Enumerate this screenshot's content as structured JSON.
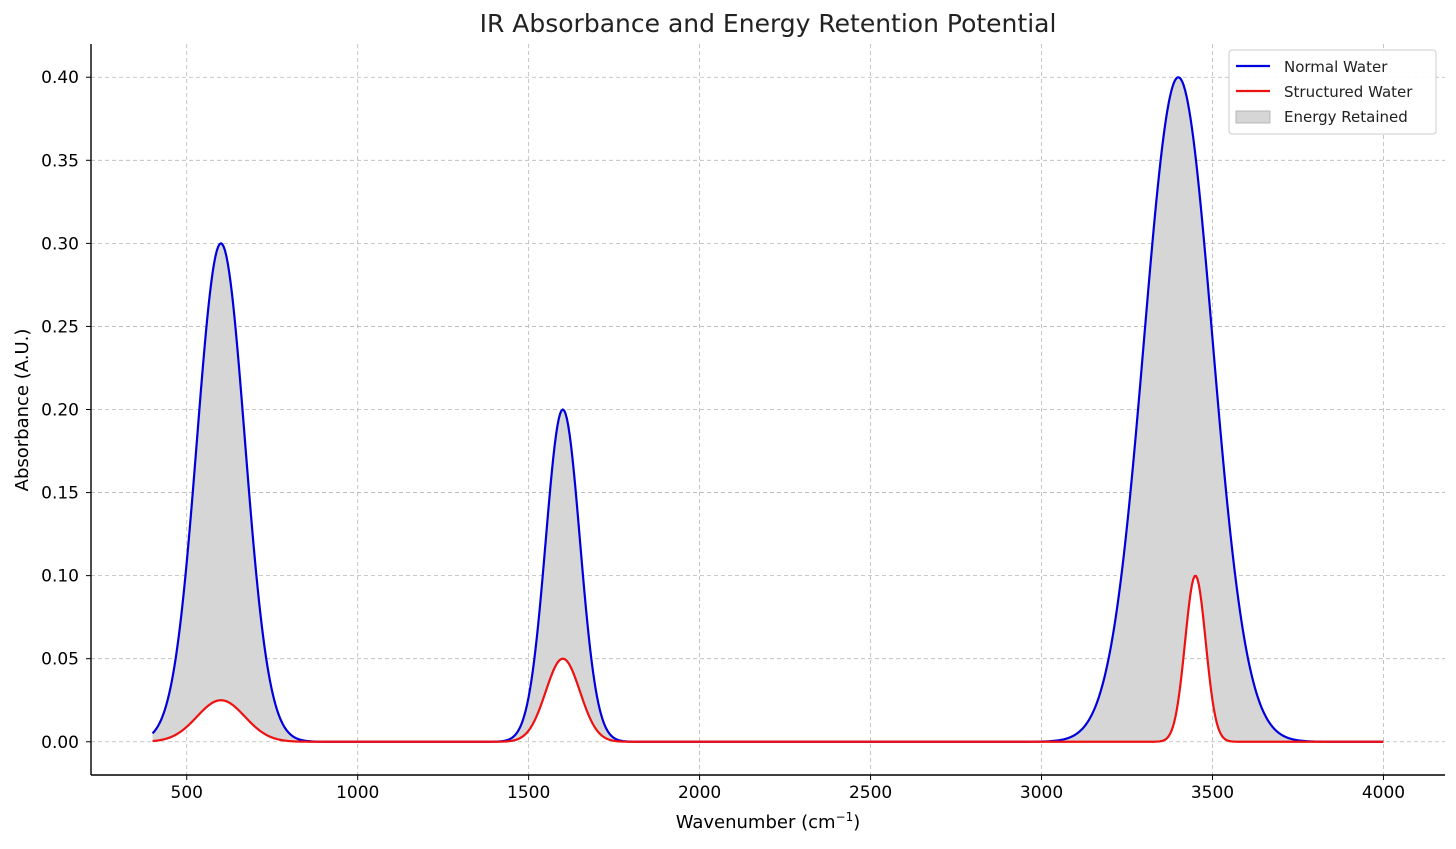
{
  "chart_data": {
    "type": "line",
    "title": "IR Absorbance and Energy Retention Potential",
    "xlabel": {
      "main": "Wavenumber (cm",
      "superscript": "−1",
      "end": ")"
    },
    "ylabel": "Absorbance (A.U.)",
    "xlim": [
      220,
      4180
    ],
    "ylim": [
      -0.02,
      0.42
    ],
    "x_range": [
      400,
      4000
    ],
    "xticks": [
      500,
      1000,
      1500,
      2000,
      2500,
      3000,
      3500,
      4000
    ],
    "xtick_labels": [
      "500",
      "1000",
      "1500",
      "2000",
      "2500",
      "3000",
      "3500",
      "4000"
    ],
    "yticks": [
      0.0,
      0.05,
      0.1,
      0.15,
      0.2,
      0.25,
      0.3,
      0.35,
      0.4
    ],
    "ytick_labels": [
      "0.00",
      "0.05",
      "0.10",
      "0.15",
      "0.20",
      "0.25",
      "0.30",
      "0.35",
      "0.40"
    ],
    "grid": true,
    "legend_position": "top-right",
    "series": [
      {
        "name": "Normal Water",
        "color": "#0000dd",
        "peaks": [
          {
            "center": 600,
            "amplitude": 0.3,
            "sigma": 70
          },
          {
            "center": 1600,
            "amplitude": 0.2,
            "sigma": 50
          },
          {
            "center": 3400,
            "amplitude": 0.4,
            "sigma": 100
          }
        ]
      },
      {
        "name": "Structured Water",
        "color": "#ee1111",
        "peaks": [
          {
            "center": 600,
            "amplitude": 0.025,
            "sigma": 70
          },
          {
            "center": 1600,
            "amplitude": 0.05,
            "sigma": 50
          },
          {
            "center": 3450,
            "amplitude": 0.1,
            "sigma": 30
          }
        ]
      }
    ],
    "fill": {
      "name": "Energy Retained",
      "between": [
        "Normal Water",
        "Structured Water"
      ],
      "color": "#d6d6d6"
    }
  }
}
